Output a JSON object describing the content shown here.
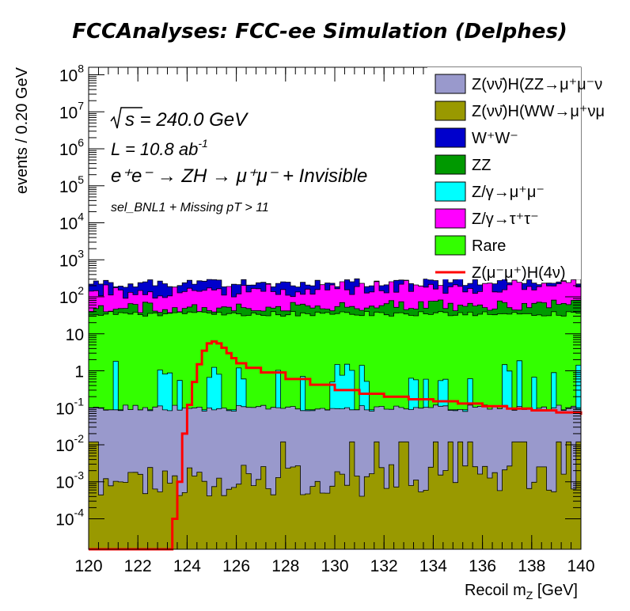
{
  "chart_data": {
    "type": "area",
    "title": "FCCAnalyses: FCC-ee Simulation (Delphes)",
    "xlabel": "Recoil m",
    "xlabel_sub": "Z",
    "xlabel_unit": " [GeV]",
    "ylabel": "events / 0.20 GeV",
    "xlim": [
      120,
      140
    ],
    "ylim": [
      1.5e-05,
      160000000.0
    ],
    "yscale": "log",
    "stacked": true,
    "x_ticks": [
      "120",
      "122",
      "124",
      "126",
      "128",
      "130",
      "132",
      "134",
      "136",
      "138",
      "140"
    ],
    "y_ticks": [
      {
        "base": "10",
        "exp": "-4",
        "value": 0.0001
      },
      {
        "base": "10",
        "exp": "-3",
        "value": 0.001
      },
      {
        "base": "10",
        "exp": "-2",
        "value": 0.01
      },
      {
        "base": "10",
        "exp": "-1",
        "value": 0.1
      },
      {
        "base": "1",
        "exp": "",
        "value": 1
      },
      {
        "base": "10",
        "exp": "",
        "value": 10
      },
      {
        "base": "10",
        "exp": "2",
        "value": 100
      },
      {
        "base": "10",
        "exp": "3",
        "value": 1000
      },
      {
        "base": "10",
        "exp": "4",
        "value": 10000
      },
      {
        "base": "10",
        "exp": "5",
        "value": 100000
      },
      {
        "base": "10",
        "exp": "6",
        "value": 1000000
      },
      {
        "base": "10",
        "exp": "7",
        "value": 10000000
      },
      {
        "base": "10",
        "exp": "8",
        "value": 100000000
      }
    ],
    "annotations": {
      "sqrt_s": "s = 240.0 GeV",
      "lumi_label": "L = 10.8 ab",
      "lumi_exp": "-1",
      "process": "e⁺e⁻ → ZH → μ⁺μ⁻ + Invisible",
      "selection": "sel_BNL1 + Missing pT > 11"
    },
    "legend_position": "top-right",
    "series": [
      {
        "name": "Z(νν̄)H(ZZ→μ⁺μ⁻ν",
        "color": "#9999cc",
        "level_low": 0.08,
        "level_high": 0.12
      },
      {
        "name": "Z(νν̄)H(WW→μ⁺νμ",
        "color": "#999900",
        "level_low": 0.0004,
        "level_high": 0.003
      },
      {
        "name": "W⁺W⁻",
        "color": "#0000cc",
        "level_low": 180,
        "level_high": 300
      },
      {
        "name": "ZZ",
        "color": "#009900",
        "level_low": 40,
        "level_high": 80
      },
      {
        "name": "Z/γ→μ⁺μ⁻",
        "color": "#00ffff",
        "level_low": 0.5,
        "level_high": 2
      },
      {
        "name": "Z/γ→τ⁺τ⁻",
        "color": "#ff00ff",
        "level_low": 100,
        "level_high": 250
      },
      {
        "name": "Rare",
        "color": "#33ff00",
        "level_low": 30,
        "level_high": 40
      },
      {
        "name": "Z(μ⁻μ⁺)H(4ν)",
        "color": "#ff0000",
        "type": "line",
        "x": [
          120,
          123.2,
          123.4,
          123.6,
          123.8,
          124.0,
          124.2,
          124.4,
          124.6,
          124.8,
          125.0,
          125.2,
          125.4,
          125.6,
          125.8,
          126.0,
          126.4,
          127,
          128,
          129,
          130,
          131,
          132,
          133,
          134,
          135,
          136,
          137,
          138,
          139,
          140
        ],
        "y": [
          1.5e-05,
          1.5e-05,
          0.0001,
          0.001,
          0.02,
          0.12,
          0.5,
          1.5,
          3.5,
          5.5,
          6.2,
          5.5,
          4.2,
          3.0,
          2.2,
          1.6,
          1.2,
          0.9,
          0.6,
          0.42,
          0.3,
          0.24,
          0.2,
          0.17,
          0.15,
          0.13,
          0.11,
          0.095,
          0.085,
          0.075,
          0.065
        ]
      }
    ]
  }
}
